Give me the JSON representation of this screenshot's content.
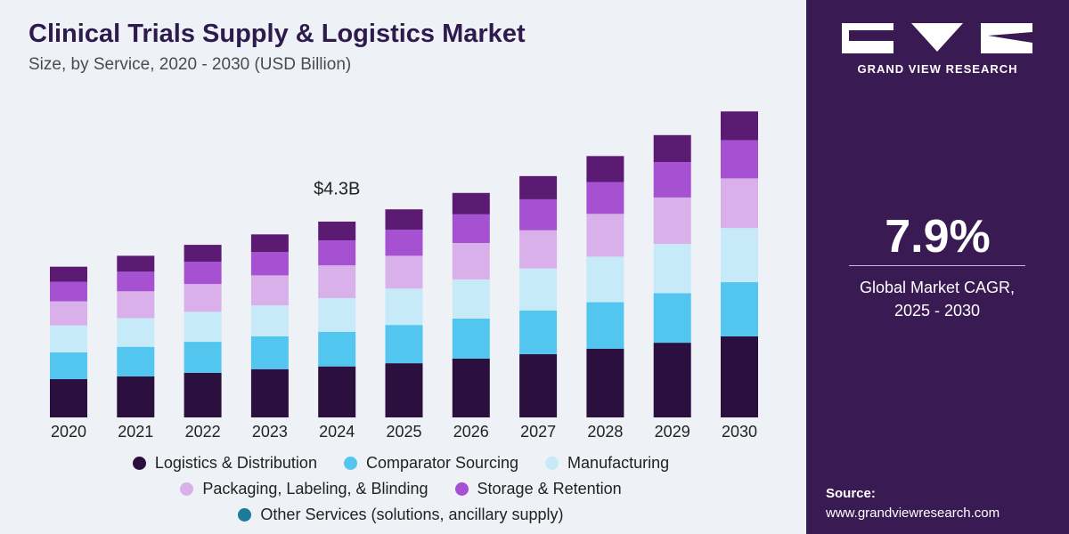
{
  "chart_data": {
    "type": "stacked_bar",
    "title": "Clinical Trials Supply & Logistics Market",
    "subtitle": "Size, by Service, 2020 - 2030 (USD Billion)",
    "categories": [
      "2020",
      "2021",
      "2022",
      "2023",
      "2024",
      "2025",
      "2026",
      "2027",
      "2028",
      "2029",
      "2030"
    ],
    "series": [
      {
        "name": "Logistics & Distribution",
        "color": "#2b0f3e",
        "values": [
          0.84,
          0.9,
          0.98,
          1.06,
          1.12,
          1.19,
          1.29,
          1.39,
          1.51,
          1.64,
          1.78
        ]
      },
      {
        "name": "Comparator Sourcing",
        "color": "#53c6f0",
        "values": [
          0.59,
          0.65,
          0.68,
          0.72,
          0.76,
          0.84,
          0.88,
          0.96,
          1.02,
          1.09,
          1.19
        ]
      },
      {
        "name": "Manufacturing",
        "color": "#c6eaf8",
        "values": [
          0.59,
          0.63,
          0.66,
          0.68,
          0.74,
          0.8,
          0.86,
          0.92,
          1.0,
          1.08,
          1.19
        ]
      },
      {
        "name": "Packaging, Labeling, & Blinding",
        "color": "#d9b0e9",
        "values": [
          0.53,
          0.59,
          0.61,
          0.66,
          0.72,
          0.72,
          0.8,
          0.84,
          0.94,
          1.02,
          1.09
        ]
      },
      {
        "name": "Storage & Retention",
        "color": "#a650d2",
        "values": [
          0.43,
          0.43,
          0.49,
          0.51,
          0.55,
          0.57,
          0.63,
          0.68,
          0.7,
          0.78,
          0.84
        ]
      },
      {
        "name": "Other Services (solutions, ancillary supply)",
        "color": "#5b1b72",
        "legend_color": "#1a7b9b",
        "values": [
          0.33,
          0.35,
          0.37,
          0.39,
          0.41,
          0.45,
          0.47,
          0.51,
          0.57,
          0.59,
          0.63
        ]
      }
    ],
    "annotations": [
      {
        "text": "$4.3B",
        "category": "2024",
        "value": 4.3
      }
    ]
  },
  "panel": {
    "brand": "GRAND VIEW RESEARCH",
    "cagr": "7.9%",
    "cagr_label": "Global Market CAGR, 2025 - 2030",
    "source_label": "Source:",
    "source_url": "www.grandviewresearch.com"
  }
}
